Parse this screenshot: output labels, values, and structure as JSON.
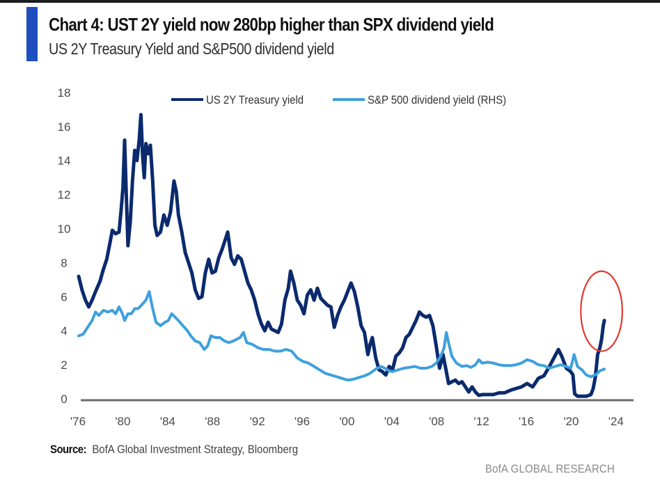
{
  "header": {
    "title": "Chart 4: UST 2Y yield now 280bp higher than SPX dividend yield",
    "subtitle": "US 2Y Treasury Yield and S&P500 dividend yield",
    "accent_color": "#1f4fbf"
  },
  "footer": {
    "source_label": "Source:",
    "source_text": "BofA Global Investment Strategy, Bloomberg",
    "brand": "BofA GLOBAL RESEARCH"
  },
  "chart_data": {
    "type": "line",
    "title": "Chart 4: UST 2Y yield now 280bp higher than SPX dividend yield",
    "subtitle": "US 2Y Treasury Yield and S&P500 dividend yield",
    "xlabel": "",
    "ylabel": "",
    "xlim": [
      1976,
      2025.5
    ],
    "ylim": [
      0,
      18
    ],
    "yticks": [
      0,
      2,
      4,
      6,
      8,
      10,
      12,
      14,
      16,
      18
    ],
    "xticks": [
      1976,
      1980,
      1984,
      1988,
      1992,
      1996,
      2000,
      2004,
      2008,
      2012,
      2016,
      2020,
      2024
    ],
    "xtick_labels": [
      "'76",
      "'80",
      "'84",
      "'88",
      "'92",
      "'96",
      "'00",
      "'04",
      "'08",
      "'12",
      "'16",
      "'20",
      "'24"
    ],
    "grid": false,
    "legend_position": "top-center",
    "annotations": [
      {
        "type": "ellipse",
        "color": "#e03a2f",
        "x_range": [
          2020.8,
          2024.5
        ],
        "y_range": [
          2.8,
          7.5
        ],
        "meaning": "highlights recent 2Y yield surge"
      }
    ],
    "series": [
      {
        "name": "US 2Y Treasury yield",
        "color": "#0b2a6e",
        "axis": "left",
        "points": [
          [
            1976.0,
            7.2
          ],
          [
            1976.3,
            6.4
          ],
          [
            1976.6,
            5.8
          ],
          [
            1976.9,
            5.4
          ],
          [
            1977.2,
            5.8
          ],
          [
            1977.5,
            6.3
          ],
          [
            1977.9,
            6.9
          ],
          [
            1978.2,
            7.6
          ],
          [
            1978.5,
            8.2
          ],
          [
            1978.8,
            9.2
          ],
          [
            1979.0,
            9.9
          ],
          [
            1979.3,
            9.7
          ],
          [
            1979.6,
            9.8
          ],
          [
            1979.8,
            11.2
          ],
          [
            1979.95,
            12.4
          ],
          [
            1980.1,
            15.2
          ],
          [
            1980.25,
            12.0
          ],
          [
            1980.4,
            9.0
          ],
          [
            1980.6,
            10.4
          ],
          [
            1980.8,
            12.8
          ],
          [
            1981.0,
            14.6
          ],
          [
            1981.2,
            14.0
          ],
          [
            1981.4,
            15.2
          ],
          [
            1981.55,
            16.7
          ],
          [
            1981.7,
            14.3
          ],
          [
            1981.85,
            13.0
          ],
          [
            1982.0,
            15.0
          ],
          [
            1982.2,
            14.4
          ],
          [
            1982.4,
            14.9
          ],
          [
            1982.6,
            12.8
          ],
          [
            1982.8,
            10.2
          ],
          [
            1983.0,
            9.6
          ],
          [
            1983.3,
            9.8
          ],
          [
            1983.6,
            10.8
          ],
          [
            1983.9,
            10.2
          ],
          [
            1984.2,
            11.0
          ],
          [
            1984.5,
            12.8
          ],
          [
            1984.7,
            12.2
          ],
          [
            1984.9,
            10.8
          ],
          [
            1985.2,
            9.8
          ],
          [
            1985.5,
            8.6
          ],
          [
            1985.8,
            8.0
          ],
          [
            1986.1,
            7.4
          ],
          [
            1986.4,
            6.4
          ],
          [
            1986.7,
            5.9
          ],
          [
            1987.0,
            6.0
          ],
          [
            1987.3,
            7.4
          ],
          [
            1987.6,
            8.2
          ],
          [
            1987.9,
            7.4
          ],
          [
            1988.2,
            7.5
          ],
          [
            1988.5,
            8.3
          ],
          [
            1988.8,
            8.8
          ],
          [
            1989.0,
            9.2
          ],
          [
            1989.3,
            9.8
          ],
          [
            1989.6,
            8.3
          ],
          [
            1989.9,
            7.9
          ],
          [
            1990.2,
            8.4
          ],
          [
            1990.5,
            8.2
          ],
          [
            1990.8,
            7.5
          ],
          [
            1991.1,
            6.8
          ],
          [
            1991.4,
            6.4
          ],
          [
            1991.7,
            5.8
          ],
          [
            1992.0,
            5.0
          ],
          [
            1992.3,
            4.4
          ],
          [
            1992.6,
            4.0
          ],
          [
            1992.9,
            4.5
          ],
          [
            1993.2,
            4.1
          ],
          [
            1993.5,
            4.0
          ],
          [
            1993.8,
            3.9
          ],
          [
            1994.1,
            4.4
          ],
          [
            1994.4,
            5.8
          ],
          [
            1994.7,
            6.5
          ],
          [
            1994.9,
            7.5
          ],
          [
            1995.2,
            6.8
          ],
          [
            1995.5,
            5.8
          ],
          [
            1995.8,
            5.5
          ],
          [
            1996.1,
            5.0
          ],
          [
            1996.4,
            6.1
          ],
          [
            1996.7,
            6.4
          ],
          [
            1997.0,
            5.8
          ],
          [
            1997.3,
            6.5
          ],
          [
            1997.6,
            5.9
          ],
          [
            1997.9,
            5.7
          ],
          [
            1998.2,
            5.5
          ],
          [
            1998.5,
            5.4
          ],
          [
            1998.8,
            4.2
          ],
          [
            1999.1,
            4.9
          ],
          [
            1999.4,
            5.4
          ],
          [
            1999.7,
            5.8
          ],
          [
            2000.0,
            6.3
          ],
          [
            2000.3,
            6.8
          ],
          [
            2000.6,
            6.3
          ],
          [
            2000.9,
            5.4
          ],
          [
            2001.2,
            4.3
          ],
          [
            2001.5,
            3.9
          ],
          [
            2001.8,
            2.6
          ],
          [
            2002.0,
            3.2
          ],
          [
            2002.2,
            3.6
          ],
          [
            2002.5,
            2.4
          ],
          [
            2002.8,
            1.7
          ],
          [
            2003.1,
            1.6
          ],
          [
            2003.4,
            1.4
          ],
          [
            2003.7,
            1.9
          ],
          [
            2004.0,
            1.7
          ],
          [
            2004.3,
            2.5
          ],
          [
            2004.6,
            2.7
          ],
          [
            2004.9,
            3.0
          ],
          [
            2005.2,
            3.6
          ],
          [
            2005.5,
            3.8
          ],
          [
            2005.8,
            4.2
          ],
          [
            2006.1,
            4.6
          ],
          [
            2006.4,
            5.1
          ],
          [
            2006.7,
            4.9
          ],
          [
            2007.0,
            4.8
          ],
          [
            2007.3,
            4.9
          ],
          [
            2007.6,
            4.3
          ],
          [
            2007.9,
            3.1
          ],
          [
            2008.2,
            1.8
          ],
          [
            2008.5,
            2.6
          ],
          [
            2008.8,
            1.6
          ],
          [
            2009.0,
            0.9
          ],
          [
            2009.3,
            1.0
          ],
          [
            2009.6,
            1.1
          ],
          [
            2009.9,
            0.9
          ],
          [
            2010.2,
            1.0
          ],
          [
            2010.5,
            0.7
          ],
          [
            2010.8,
            0.4
          ],
          [
            2011.1,
            0.7
          ],
          [
            2011.4,
            0.4
          ],
          [
            2011.7,
            0.2
          ],
          [
            2012.0,
            0.25
          ],
          [
            2012.5,
            0.25
          ],
          [
            2013.0,
            0.25
          ],
          [
            2013.5,
            0.35
          ],
          [
            2014.0,
            0.35
          ],
          [
            2014.5,
            0.5
          ],
          [
            2015.0,
            0.6
          ],
          [
            2015.5,
            0.7
          ],
          [
            2016.0,
            0.9
          ],
          [
            2016.5,
            0.7
          ],
          [
            2017.0,
            1.2
          ],
          [
            2017.5,
            1.35
          ],
          [
            2018.0,
            1.9
          ],
          [
            2018.4,
            2.4
          ],
          [
            2018.8,
            2.9
          ],
          [
            2019.1,
            2.5
          ],
          [
            2019.5,
            1.8
          ],
          [
            2019.9,
            1.6
          ],
          [
            2020.1,
            1.4
          ],
          [
            2020.25,
            0.3
          ],
          [
            2020.5,
            0.15
          ],
          [
            2020.9,
            0.15
          ],
          [
            2021.3,
            0.15
          ],
          [
            2021.7,
            0.25
          ],
          [
            2021.9,
            0.6
          ],
          [
            2022.1,
            1.3
          ],
          [
            2022.3,
            2.6
          ],
          [
            2022.5,
            3.0
          ],
          [
            2022.65,
            3.5
          ],
          [
            2022.8,
            4.3
          ],
          [
            2022.9,
            4.6
          ]
        ]
      },
      {
        "name": "S&P 500 dividend yield (RHS)",
        "color": "#3ea0dd",
        "axis": "right",
        "points": [
          [
            1976.0,
            3.7
          ],
          [
            1976.4,
            3.8
          ],
          [
            1976.8,
            4.2
          ],
          [
            1977.2,
            4.6
          ],
          [
            1977.5,
            5.1
          ],
          [
            1977.8,
            4.9
          ],
          [
            1978.2,
            5.2
          ],
          [
            1978.6,
            5.1
          ],
          [
            1979.0,
            5.2
          ],
          [
            1979.3,
            5.0
          ],
          [
            1979.6,
            5.4
          ],
          [
            1979.9,
            5.0
          ],
          [
            1980.1,
            4.6
          ],
          [
            1980.4,
            5.0
          ],
          [
            1980.7,
            5.0
          ],
          [
            1981.0,
            5.3
          ],
          [
            1981.3,
            5.3
          ],
          [
            1981.6,
            5.5
          ],
          [
            1982.0,
            5.8
          ],
          [
            1982.3,
            6.3
          ],
          [
            1982.6,
            5.3
          ],
          [
            1982.9,
            4.5
          ],
          [
            1983.3,
            4.3
          ],
          [
            1983.7,
            4.5
          ],
          [
            1984.0,
            4.6
          ],
          [
            1984.3,
            5.0
          ],
          [
            1984.6,
            4.8
          ],
          [
            1984.9,
            4.6
          ],
          [
            1985.3,
            4.3
          ],
          [
            1985.7,
            4.0
          ],
          [
            1986.0,
            3.7
          ],
          [
            1986.4,
            3.4
          ],
          [
            1986.8,
            3.3
          ],
          [
            1987.2,
            2.9
          ],
          [
            1987.5,
            3.1
          ],
          [
            1987.8,
            3.7
          ],
          [
            1988.2,
            3.6
          ],
          [
            1988.6,
            3.6
          ],
          [
            1989.0,
            3.4
          ],
          [
            1989.4,
            3.3
          ],
          [
            1989.8,
            3.4
          ],
          [
            1990.1,
            3.5
          ],
          [
            1990.4,
            3.6
          ],
          [
            1990.7,
            3.9
          ],
          [
            1991.0,
            3.3
          ],
          [
            1991.5,
            3.2
          ],
          [
            1992.0,
            3.0
          ],
          [
            1992.5,
            2.9
          ],
          [
            1993.0,
            2.9
          ],
          [
            1993.5,
            2.8
          ],
          [
            1994.0,
            2.8
          ],
          [
            1994.5,
            2.9
          ],
          [
            1995.0,
            2.8
          ],
          [
            1995.5,
            2.4
          ],
          [
            1996.0,
            2.2
          ],
          [
            1996.5,
            2.1
          ],
          [
            1997.0,
            1.9
          ],
          [
            1997.5,
            1.7
          ],
          [
            1998.0,
            1.5
          ],
          [
            1998.5,
            1.4
          ],
          [
            1999.0,
            1.3
          ],
          [
            1999.5,
            1.2
          ],
          [
            2000.0,
            1.1
          ],
          [
            2000.5,
            1.15
          ],
          [
            2001.0,
            1.25
          ],
          [
            2001.5,
            1.35
          ],
          [
            2002.0,
            1.5
          ],
          [
            2002.5,
            1.75
          ],
          [
            2003.0,
            1.9
          ],
          [
            2003.3,
            1.8
          ],
          [
            2003.7,
            1.65
          ],
          [
            2004.0,
            1.6
          ],
          [
            2004.5,
            1.7
          ],
          [
            2005.0,
            1.8
          ],
          [
            2005.5,
            1.85
          ],
          [
            2006.0,
            1.9
          ],
          [
            2006.5,
            1.8
          ],
          [
            2007.0,
            1.8
          ],
          [
            2007.5,
            1.9
          ],
          [
            2007.9,
            2.1
          ],
          [
            2008.3,
            2.5
          ],
          [
            2008.6,
            3.0
          ],
          [
            2008.8,
            3.9
          ],
          [
            2009.0,
            3.3
          ],
          [
            2009.3,
            2.5
          ],
          [
            2009.7,
            2.1
          ],
          [
            2010.2,
            1.9
          ],
          [
            2010.6,
            1.95
          ],
          [
            2011.0,
            1.85
          ],
          [
            2011.4,
            2.0
          ],
          [
            2011.7,
            2.3
          ],
          [
            2012.0,
            2.1
          ],
          [
            2012.5,
            2.15
          ],
          [
            2013.0,
            2.1
          ],
          [
            2013.5,
            2.0
          ],
          [
            2014.0,
            1.95
          ],
          [
            2014.5,
            1.95
          ],
          [
            2015.0,
            2.0
          ],
          [
            2015.5,
            2.1
          ],
          [
            2016.0,
            2.3
          ],
          [
            2016.5,
            2.2
          ],
          [
            2017.0,
            2.0
          ],
          [
            2017.5,
            1.95
          ],
          [
            2018.0,
            1.8
          ],
          [
            2018.5,
            1.9
          ],
          [
            2019.0,
            2.0
          ],
          [
            2019.5,
            1.9
          ],
          [
            2019.9,
            1.8
          ],
          [
            2020.2,
            2.6
          ],
          [
            2020.5,
            1.9
          ],
          [
            2020.9,
            1.7
          ],
          [
            2021.3,
            1.4
          ],
          [
            2021.7,
            1.3
          ],
          [
            2021.9,
            1.35
          ],
          [
            2022.2,
            1.45
          ],
          [
            2022.5,
            1.65
          ],
          [
            2022.9,
            1.75
          ]
        ]
      }
    ]
  }
}
